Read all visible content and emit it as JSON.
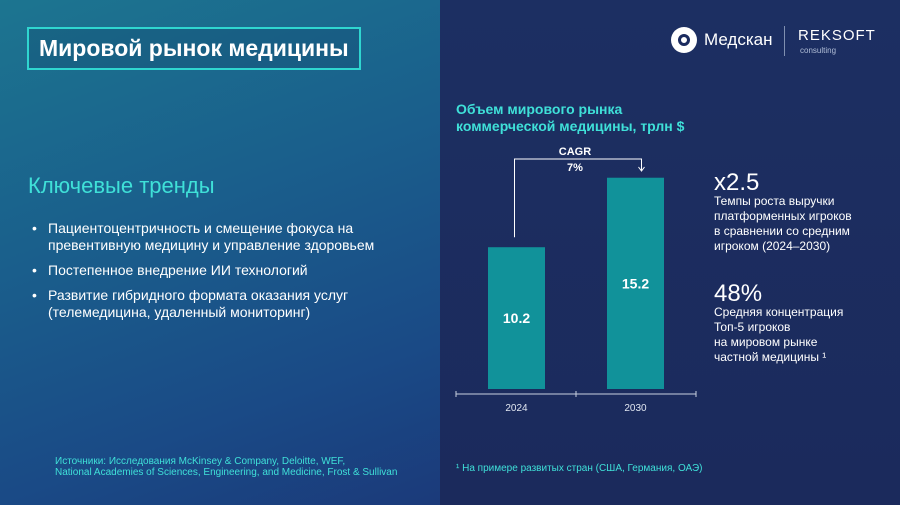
{
  "title": "Мировой рынок медицины",
  "logos": {
    "medscan": "Медскан",
    "reksoft": "REKSOFT",
    "reksoft_sub": "consulting"
  },
  "trends": {
    "heading": "Ключевые тренды",
    "items": [
      "Пациентоцентричность и смещение фокуса на превентивную медицину и управление здоровьем",
      "Постепенное внедрение ИИ технологий",
      "Развитие гибридного формата оказания услуг (телемедицина, удаленный мониторинг)"
    ]
  },
  "sources": {
    "line1": "Источники: Исследования McKinsey & Company, Deloitte, WEF,",
    "line2": "National Academies of Sciences, Engineering, and Medicine, Frost & Sullivan"
  },
  "footnote": "¹ На примере развитых стран (США, Германия, ОАЭ)",
  "chart_data": {
    "type": "bar",
    "title_line1": "Объем мирового рынка",
    "title_line2": "коммерческой медицины, трлн $",
    "categories": [
      "2024",
      "2030"
    ],
    "values": [
      10.2,
      15.2
    ],
    "labels": [
      "10.2",
      "15.2"
    ],
    "annotation": {
      "line1": "CAGR",
      "line2": "7%"
    },
    "bar_color": "#11929a",
    "grid": false
  },
  "stats": [
    {
      "value": "x2.5",
      "lines": [
        "Темпы роста выручки",
        "платформенных игроков",
        "в сравнении со средним",
        "игроком (2024–2030)"
      ]
    },
    {
      "value": "48%",
      "lines": [
        "Средняя концентрация",
        "Топ-5 игроков",
        "на мировом рынке",
        "частной медицины ¹"
      ]
    }
  ]
}
